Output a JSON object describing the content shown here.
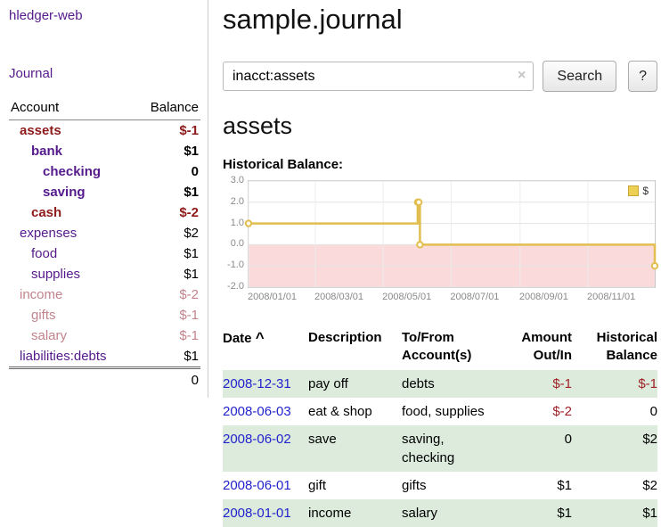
{
  "colors": {
    "link_purple": "#551a8b",
    "negative_red": "#8e1b1b",
    "faded_negative_rose": "#c2848c",
    "register_negative_red": "#a02028",
    "date_link_blue": "#2323cc",
    "row_green": "#dcebdc",
    "chart_line_gold": "#e2bd4f",
    "chart_negative_pink": "#fadada"
  },
  "app": {
    "title": "hledger-web"
  },
  "sidebar": {
    "journal_link": "Journal",
    "accounts": {
      "header_account": "Account",
      "header_balance": "Balance",
      "rows": [
        {
          "name": "assets",
          "balance": "$-1",
          "level": 1,
          "bold": true,
          "color": "neg"
        },
        {
          "name": "bank",
          "balance": "$1",
          "level": 2,
          "bold": true,
          "color": "pos"
        },
        {
          "name": "checking",
          "balance": "0",
          "level": 3,
          "bold": true,
          "color": "pos"
        },
        {
          "name": "saving",
          "balance": "$1",
          "level": 3,
          "bold": true,
          "color": "pos"
        },
        {
          "name": "cash",
          "balance": "$-2",
          "level": 2,
          "bold": true,
          "color": "neg"
        },
        {
          "name": "expenses",
          "balance": "$2",
          "level": 1,
          "bold": false,
          "color": "pos"
        },
        {
          "name": "food",
          "balance": "$1",
          "level": 2,
          "bold": false,
          "color": "pos"
        },
        {
          "name": "supplies",
          "balance": "$1",
          "level": 2,
          "bold": false,
          "color": "pos"
        },
        {
          "name": "income",
          "balance": "$-2",
          "level": 1,
          "bold": false,
          "color": "negfaded"
        },
        {
          "name": "gifts",
          "balance": "$-1",
          "level": 2,
          "bold": false,
          "color": "negfaded"
        },
        {
          "name": "salary",
          "balance": "$-1",
          "level": 2,
          "bold": false,
          "color": "negfaded"
        },
        {
          "name": "liabilities:debts",
          "balance": "$1",
          "level": 1,
          "bold": false,
          "color": "pos"
        }
      ],
      "total": "0"
    }
  },
  "main": {
    "title": "sample.journal",
    "search": {
      "value": "inacct:assets",
      "clear_icon": "×",
      "search_button": "Search",
      "help_button": "?"
    },
    "account_heading": "assets",
    "register": {
      "sort_icon": "^",
      "headers": {
        "date": "Date",
        "description": "Description",
        "accounts": "To/From\nAccount(s)",
        "amount": "Amount\nOut/In",
        "balance": "Historical\nBalance"
      },
      "rows": [
        {
          "date": "2008-12-31",
          "description": "pay off",
          "accounts": "debts",
          "amount": "$-1",
          "balance": "$-1"
        },
        {
          "date": "2008-06-03",
          "description": "eat & shop",
          "accounts": "food, supplies",
          "amount": "$-2",
          "balance": "0"
        },
        {
          "date": "2008-06-02",
          "description": "save",
          "accounts": "saving, checking",
          "amount": "0",
          "balance": "$2"
        },
        {
          "date": "2008-06-01",
          "description": "gift",
          "accounts": "gifts",
          "amount": "$1",
          "balance": "$2"
        },
        {
          "date": "2008-01-01",
          "description": "income",
          "accounts": "salary",
          "amount": "$1",
          "balance": "$1"
        }
      ]
    }
  },
  "chart_data": {
    "type": "line",
    "style": "step-after",
    "title": "Historical Balance:",
    "series": [
      {
        "name": "$",
        "color": "#e2bd4f",
        "points": [
          [
            "2008-01-01",
            1
          ],
          [
            "2008-06-01",
            2
          ],
          [
            "2008-06-02",
            2
          ],
          [
            "2008-06-03",
            0
          ],
          [
            "2008-12-31",
            -1
          ]
        ]
      }
    ],
    "xrange": [
      "2008-01-01",
      "2008-12-31"
    ],
    "ylim": [
      -2.0,
      3.0
    ],
    "yticks": [
      "3.0",
      "2.0",
      "1.0",
      "0.0",
      "-1.0",
      "-2.0"
    ],
    "xticks": [
      "2008/01/01",
      "2008/03/01",
      "2008/05/01",
      "2008/07/01",
      "2008/09/01",
      "2008/11/01"
    ],
    "legend": {
      "label": "$",
      "position": "top-right"
    },
    "negative_region_color": "#fadada",
    "grid": true
  }
}
